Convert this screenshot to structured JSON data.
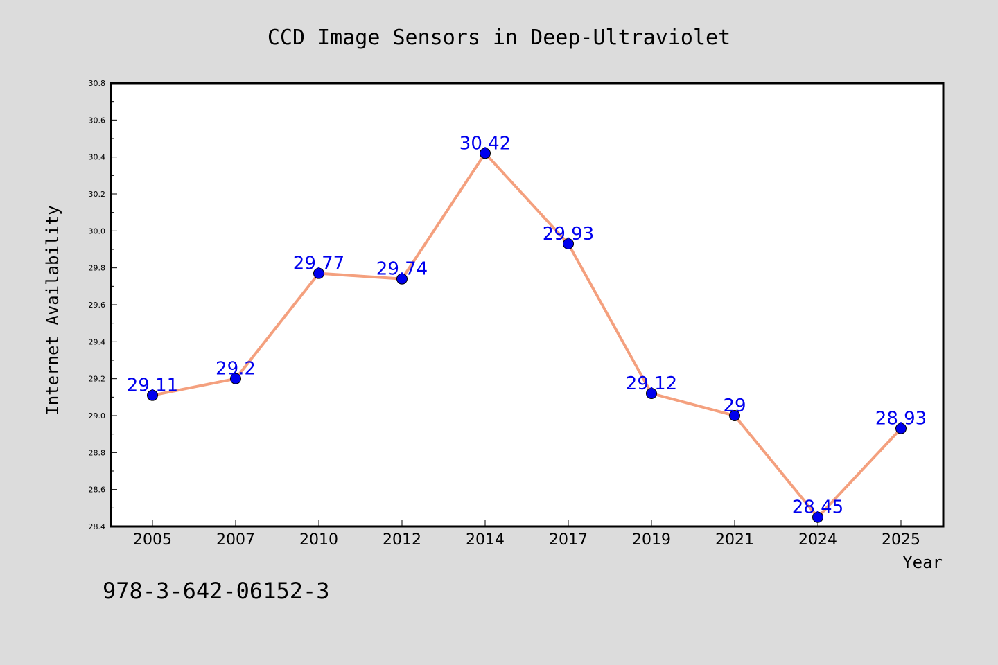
{
  "chart_data": {
    "type": "line",
    "title": "CCD Image Sensors in Deep-Ultraviolet",
    "xlabel": "Year",
    "ylabel": "Internet Availability",
    "categories": [
      "2005",
      "2007",
      "2010",
      "2012",
      "2014",
      "2017",
      "2019",
      "2021",
      "2024",
      "2025"
    ],
    "values": [
      29.11,
      29.2,
      29.77,
      29.74,
      30.42,
      29.93,
      29.12,
      29.0,
      28.45,
      28.93
    ],
    "data_labels": [
      "29.11",
      "29.2",
      "29.77",
      "29.74",
      "30.42",
      "29.93",
      "29.12",
      "29",
      "28.45",
      "28.93"
    ],
    "ylim": [
      28.4,
      30.8
    ],
    "yticks": [
      "28.4",
      "28.6",
      "28.8",
      "29.0",
      "29.2",
      "29.4",
      "29.6",
      "29.8",
      "30.0",
      "30.2",
      "30.4",
      "30.6",
      "30.8"
    ],
    "grid": false,
    "legend": "none",
    "line_color": "#f4a07e",
    "marker_color": "#0000ee",
    "label_color": "#0000ee"
  },
  "footer": {
    "isbn": "978-3-642-06152-3"
  },
  "colors": {
    "background": "#dcdcdc",
    "plot_background": "#ffffff"
  }
}
